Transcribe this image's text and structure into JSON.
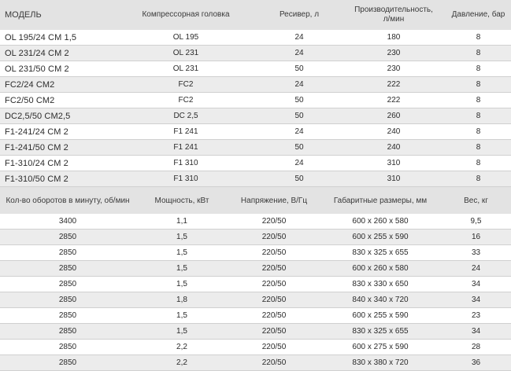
{
  "top_table": {
    "headers": [
      "МОДЕЛЬ",
      "Компрессорная головка",
      "Ресивер, л",
      "Производительность, л/мин",
      "Давление, бар"
    ],
    "header_perf_line1": "Производительность,",
    "header_perf_line2": "л/мин",
    "rows": [
      [
        "OL 195/24 CM 1,5",
        "OL 195",
        "24",
        "180",
        "8"
      ],
      [
        "OL 231/24 CM 2",
        "OL 231",
        "24",
        "230",
        "8"
      ],
      [
        "OL 231/50 CM 2",
        "OL 231",
        "50",
        "230",
        "8"
      ],
      [
        "FC2/24 CM2",
        "FC2",
        "24",
        "222",
        "8"
      ],
      [
        "FC2/50 CM2",
        "FC2",
        "50",
        "222",
        "8"
      ],
      [
        "DC2,5/50 CM2,5",
        "DC 2,5",
        "50",
        "260",
        "8"
      ],
      [
        "F1-241/24 CM 2",
        "F1 241",
        "24",
        "240",
        "8"
      ],
      [
        "F1-241/50 CM 2",
        "F1 241",
        "50",
        "240",
        "8"
      ],
      [
        "F1-310/24 CM 2",
        "F1 310",
        "24",
        "310",
        "8"
      ],
      [
        "F1-310/50 CM 2",
        "F1 310",
        "50",
        "310",
        "8"
      ]
    ]
  },
  "bottom_table": {
    "headers": [
      "Кол-во оборотов в минуту, об/мин",
      "Мощность, кВт",
      "Напряжение, В/Гц",
      "Габаритные размеры, мм",
      "Вес, кг"
    ],
    "rows": [
      [
        "3400",
        "1,1",
        "220/50",
        "600 x 260 x 580",
        "9,5"
      ],
      [
        "2850",
        "1,5",
        "220/50",
        "600 x 255 x 590",
        "16"
      ],
      [
        "2850",
        "1,5",
        "220/50",
        "830 x 325 x 655",
        "33"
      ],
      [
        "2850",
        "1,5",
        "220/50",
        "600 x 260 x 580",
        "24"
      ],
      [
        "2850",
        "1,5",
        "220/50",
        "830 x 330 x 650",
        "34"
      ],
      [
        "2850",
        "1,8",
        "220/50",
        "840 x 340 x 720",
        "34"
      ],
      [
        "2850",
        "1,5",
        "220/50",
        "600 x 255 x 590",
        "23"
      ],
      [
        "2850",
        "1,5",
        "220/50",
        "830 x 325 x 655",
        "34"
      ],
      [
        "2850",
        "2,2",
        "220/50",
        "600 x 275 x 590",
        "28"
      ],
      [
        "2850",
        "2,2",
        "220/50",
        "830 x 380 x 720",
        "36"
      ]
    ]
  }
}
